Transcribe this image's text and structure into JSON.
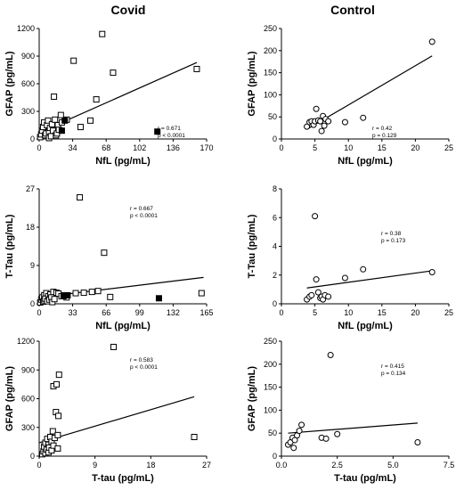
{
  "titles": {
    "left": "Covid",
    "right": "Control"
  },
  "chart_data": [
    {
      "id": "covid-nfl-gfap",
      "type": "scatter",
      "xlabel": "NfL (pg/mL)",
      "ylabel": "GFAP (pg/mL)",
      "xlim": [
        0,
        170
      ],
      "ylim": [
        0,
        1200
      ],
      "xticks": [
        0,
        34,
        68,
        102,
        136,
        170
      ],
      "yticks": [
        0,
        300,
        600,
        900,
        1200
      ],
      "stats": {
        "r": "r = 0.671",
        "p": "p < 0.0001"
      },
      "fit": [
        [
          0,
          70
        ],
        [
          160,
          830
        ]
      ],
      "series": [
        {
          "marker": "open-square",
          "points": [
            [
              1,
              20
            ],
            [
              2,
              50
            ],
            [
              3,
              90
            ],
            [
              4,
              130
            ],
            [
              5,
              180
            ],
            [
              6,
              40
            ],
            [
              7,
              60
            ],
            [
              8,
              150
            ],
            [
              9,
              200
            ],
            [
              10,
              10
            ],
            [
              10,
              80
            ],
            [
              11,
              120
            ],
            [
              12,
              30
            ],
            [
              13,
              160
            ],
            [
              14,
              90
            ],
            [
              15,
              460
            ],
            [
              16,
              210
            ],
            [
              17,
              40
            ],
            [
              18,
              60
            ],
            [
              19,
              150
            ],
            [
              20,
              100
            ],
            [
              22,
              260
            ],
            [
              23,
              180
            ],
            [
              28,
              210
            ],
            [
              35,
              850
            ],
            [
              42,
              130
            ],
            [
              52,
              200
            ],
            [
              58,
              430
            ],
            [
              64,
              1140
            ],
            [
              75,
              720
            ],
            [
              160,
              760
            ]
          ]
        },
        {
          "marker": "filled-square",
          "points": [
            [
              23,
              90
            ],
            [
              26,
              200
            ],
            [
              120,
              80
            ]
          ]
        }
      ]
    },
    {
      "id": "control-nfl-gfap",
      "type": "scatter",
      "xlabel": "NfL (pg/mL)",
      "ylabel": "GFAP (pg/mL)",
      "xlim": [
        0,
        25
      ],
      "ylim": [
        0,
        250
      ],
      "xticks": [
        0,
        5,
        10,
        15,
        20,
        25
      ],
      "yticks": [
        0,
        50,
        100,
        150,
        200,
        250
      ],
      "stats": {
        "r": "r = 0.42",
        "p": "p = 0.129"
      },
      "fit": [
        [
          3.8,
          22
        ],
        [
          22.5,
          188
        ]
      ],
      "series": [
        {
          "marker": "open-circle",
          "points": [
            [
              3.8,
              28
            ],
            [
              4.2,
              38
            ],
            [
              4.5,
              40
            ],
            [
              4.8,
              32
            ],
            [
              5.0,
              40
            ],
            [
              5.2,
              68
            ],
            [
              5.5,
              42
            ],
            [
              5.8,
              40
            ],
            [
              6.0,
              18
            ],
            [
              6.2,
              52
            ],
            [
              6.4,
              30
            ],
            [
              6.6,
              45
            ],
            [
              7.0,
              40
            ],
            [
              9.5,
              38
            ],
            [
              12.2,
              48
            ],
            [
              22.5,
              220
            ]
          ]
        }
      ]
    },
    {
      "id": "covid-nfl-ttau",
      "type": "scatter",
      "xlabel": "NfL (pg/mL)",
      "ylabel": "T-Tau (pg/mL)",
      "xlim": [
        0,
        165
      ],
      "ylim": [
        0,
        27
      ],
      "xticks": [
        0,
        33,
        66,
        99,
        132,
        165
      ],
      "yticks": [
        0,
        9,
        18,
        27
      ],
      "stats": {
        "r": "r = 0.667",
        "p": "p < 0.0001"
      },
      "fit": [
        [
          0,
          1.5
        ],
        [
          162,
          6.2
        ]
      ],
      "series": [
        {
          "marker": "open-square",
          "points": [
            [
              1,
              0.3
            ],
            [
              2,
              1.0
            ],
            [
              3,
              1.5
            ],
            [
              4,
              0.5
            ],
            [
              5,
              2.0
            ],
            [
              5,
              0.8
            ],
            [
              6,
              1.2
            ],
            [
              7,
              2.5
            ],
            [
              8,
              0.6
            ],
            [
              9,
              1.8
            ],
            [
              10,
              1.0
            ],
            [
              11,
              2.2
            ],
            [
              12,
              1.5
            ],
            [
              13,
              0.4
            ],
            [
              14,
              2.8
            ],
            [
              15,
              1.1
            ],
            [
              17,
              2.6
            ],
            [
              19,
              2.4
            ],
            [
              22,
              1.8
            ],
            [
              25,
              2.0
            ],
            [
              27,
              1.5
            ],
            [
              36,
              2.5
            ],
            [
              40,
              25.0
            ],
            [
              44,
              2.6
            ],
            [
              52,
              2.8
            ],
            [
              58,
              3.0
            ],
            [
              64,
              12.0
            ],
            [
              70,
              1.6
            ],
            [
              160,
              2.5
            ]
          ]
        },
        {
          "marker": "filled-square",
          "points": [
            [
              24,
              1.8
            ],
            [
              28,
              2.0
            ],
            [
              118,
              1.3
            ]
          ]
        }
      ]
    },
    {
      "id": "control-nfl-ttau",
      "type": "scatter",
      "xlabel": "NfL (pg/mL)",
      "ylabel": "T-Tau (pg/mL)",
      "xlim": [
        0,
        25
      ],
      "ylim": [
        0,
        8
      ],
      "xticks": [
        0,
        5,
        10,
        15,
        20,
        25
      ],
      "yticks": [
        0,
        2,
        4,
        6,
        8
      ],
      "stats": {
        "r": "r = 0.38",
        "p": "p = 0.173"
      },
      "fit": [
        [
          3.8,
          1.1
        ],
        [
          22.5,
          2.3
        ]
      ],
      "series": [
        {
          "marker": "open-circle",
          "points": [
            [
              3.8,
              0.3
            ],
            [
              4.2,
              0.5
            ],
            [
              4.5,
              0.6
            ],
            [
              5.0,
              6.1
            ],
            [
              5.2,
              1.7
            ],
            [
              5.5,
              0.8
            ],
            [
              5.8,
              0.4
            ],
            [
              6.0,
              0.5
            ],
            [
              6.2,
              0.3
            ],
            [
              6.5,
              0.6
            ],
            [
              7.0,
              0.5
            ],
            [
              9.5,
              1.8
            ],
            [
              12.2,
              2.4
            ],
            [
              22.5,
              2.2
            ]
          ]
        }
      ]
    },
    {
      "id": "covid-ttau-gfap",
      "type": "scatter",
      "xlabel": "T-tau (pg/mL)",
      "ylabel": "GFAP (pg/mL)",
      "xlim": [
        0,
        27
      ],
      "ylim": [
        0,
        1200
      ],
      "xticks": [
        0,
        9,
        18,
        27
      ],
      "yticks": [
        0,
        300,
        600,
        900,
        1200
      ],
      "stats": {
        "r": "r = 0.583",
        "p": "p < 0.0001"
      },
      "fit": [
        [
          0,
          140
        ],
        [
          25,
          620
        ]
      ],
      "series": [
        {
          "marker": "open-square",
          "points": [
            [
              0.5,
              20
            ],
            [
              0.7,
              50
            ],
            [
              0.8,
              100
            ],
            [
              1.0,
              30
            ],
            [
              1.0,
              140
            ],
            [
              1.2,
              70
            ],
            [
              1.3,
              180
            ],
            [
              1.5,
              40
            ],
            [
              1.5,
              120
            ],
            [
              1.6,
              90
            ],
            [
              1.8,
              200
            ],
            [
              2.0,
              60
            ],
            [
              2.0,
              150
            ],
            [
              2.2,
              260
            ],
            [
              2.3,
              110
            ],
            [
              2.3,
              730
            ],
            [
              2.5,
              190
            ],
            [
              2.7,
              460
            ],
            [
              2.8,
              750
            ],
            [
              3.0,
              80
            ],
            [
              3.0,
              220
            ],
            [
              3.1,
              420
            ],
            [
              3.2,
              850
            ],
            [
              12.0,
              1140
            ],
            [
              25.0,
              200
            ]
          ]
        }
      ]
    },
    {
      "id": "control-ttau-gfap",
      "type": "scatter",
      "xlabel": "T-tau (pg/mL)",
      "ylabel": "GFAP (pg/mL)",
      "xlim": [
        0,
        7.5
      ],
      "ylim": [
        0,
        250
      ],
      "xticks": [
        0,
        2.5,
        5.0,
        7.5
      ],
      "yticks": [
        0,
        50,
        100,
        150,
        200,
        250
      ],
      "stats": {
        "r": "r = 0.415",
        "p": "p = 0.134"
      },
      "fit": [
        [
          0.3,
          50
        ],
        [
          6.1,
          72
        ]
      ],
      "series": [
        {
          "marker": "open-circle",
          "points": [
            [
              0.3,
              25
            ],
            [
              0.4,
              30
            ],
            [
              0.5,
              40
            ],
            [
              0.55,
              18
            ],
            [
              0.6,
              35
            ],
            [
              0.7,
              45
            ],
            [
              0.8,
              55
            ],
            [
              0.9,
              68
            ],
            [
              1.8,
              40
            ],
            [
              2.0,
              38
            ],
            [
              2.2,
              220
            ],
            [
              2.5,
              48
            ],
            [
              6.1,
              30
            ]
          ]
        }
      ]
    }
  ]
}
